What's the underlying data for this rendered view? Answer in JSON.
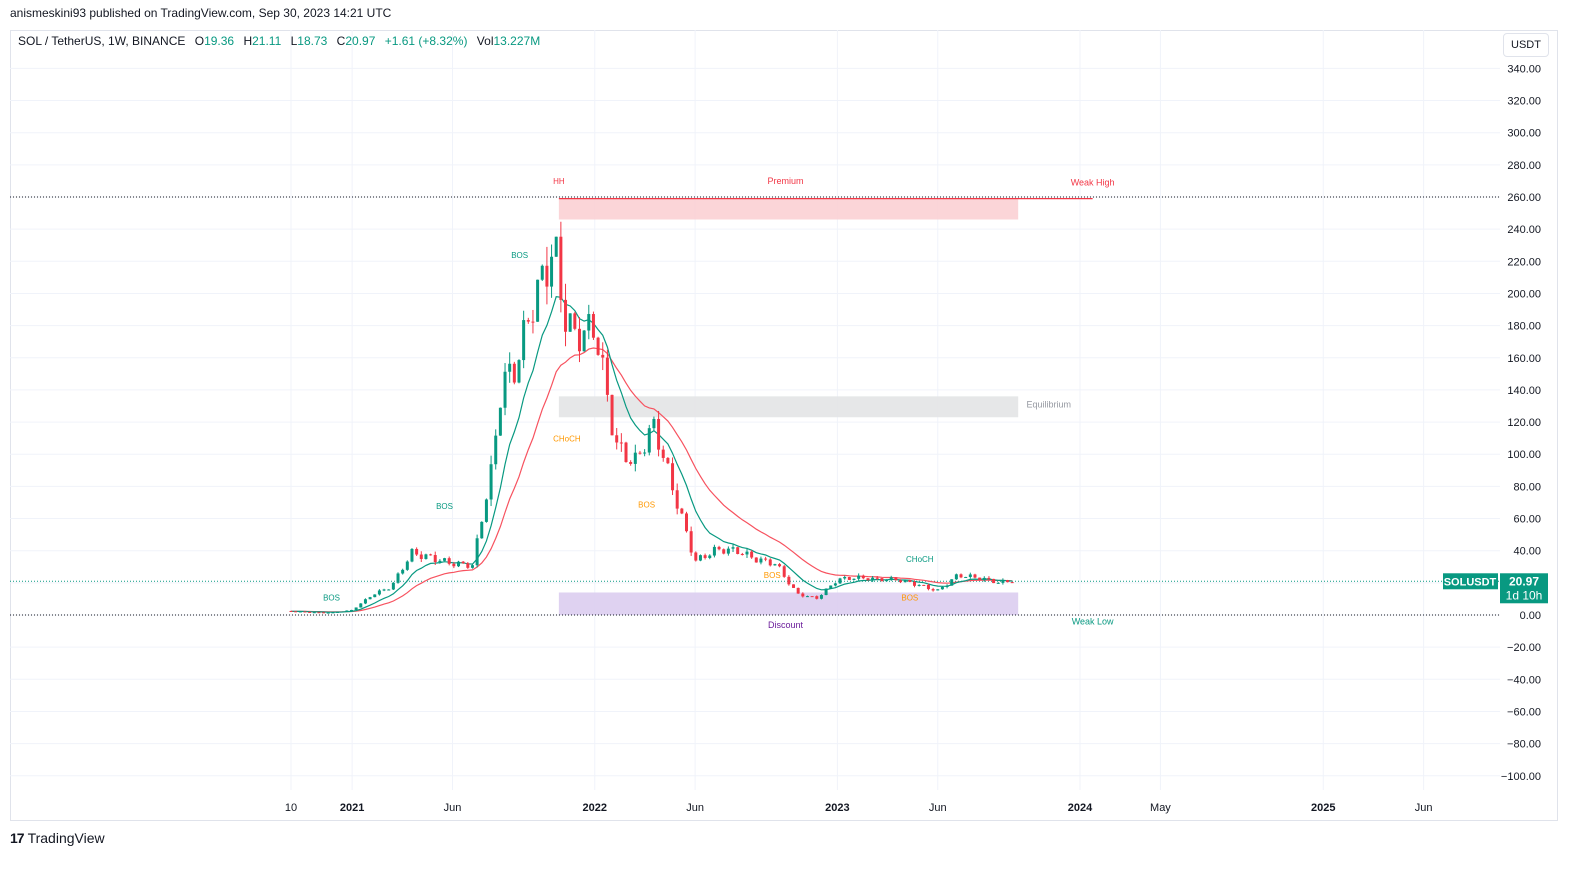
{
  "header": {
    "published": "anismeskini93 published on TradingView.com, Sep 30, 2023 14:21 UTC"
  },
  "legend": {
    "symbol": "SOL / TetherUS, 1W, BINANCE",
    "open_label": "O",
    "open": "19.36",
    "high_label": "H",
    "high": "21.11",
    "low_label": "L",
    "low": "18.73",
    "close_label": "C",
    "close": "20.97",
    "change": "+1.61 (+8.32%)",
    "vol_label": "Vol",
    "vol": "13.227M"
  },
  "unit_button": "USDT",
  "price_tag": {
    "symbol": "SOLUSDT",
    "price": "20.97",
    "countdown": "1d 10h"
  },
  "footer": {
    "brand": "TradingView"
  },
  "colors": {
    "up": "#089981",
    "down": "#f23645",
    "ema_fast": "#089981",
    "ema_slow": "#f7525f"
  },
  "chart_data": {
    "type": "candlestick",
    "ylim": [
      -100,
      340
    ],
    "y_ticks": [
      "340.00",
      "320.00",
      "300.00",
      "280.00",
      "260.00",
      "240.00",
      "220.00",
      "200.00",
      "180.00",
      "160.00",
      "140.00",
      "120.00",
      "100.00",
      "80.00",
      "60.00",
      "40.00",
      "20.00",
      "0.00",
      "−20.00",
      "−40.00",
      "−60.00",
      "−80.00",
      "−100.00"
    ],
    "x_ticks": [
      {
        "label": "10",
        "date": "2020-10-01",
        "bold": false
      },
      {
        "label": "2021",
        "date": "2021-01-01",
        "bold": true
      },
      {
        "label": "Jun",
        "date": "2021-06-01",
        "bold": false
      },
      {
        "label": "2022",
        "date": "2022-01-01",
        "bold": true
      },
      {
        "label": "Jun",
        "date": "2022-06-01",
        "bold": false
      },
      {
        "label": "2023",
        "date": "2023-01-01",
        "bold": true
      },
      {
        "label": "Jun",
        "date": "2023-06-01",
        "bold": false
      },
      {
        "label": "2024",
        "date": "2024-01-01",
        "bold": true
      },
      {
        "label": "May",
        "date": "2024-05-01",
        "bold": false
      },
      {
        "label": "2025",
        "date": "2025-01-01",
        "bold": true
      },
      {
        "label": "Jun",
        "date": "2025-06-01",
        "bold": false
      }
    ],
    "closes": [
      {
        "d": "2020-10-01",
        "c": 2.5
      },
      {
        "d": "2020-11-01",
        "c": 1.8
      },
      {
        "d": "2020-12-01",
        "c": 1.5
      },
      {
        "d": "2021-01-01",
        "c": 3
      },
      {
        "d": "2021-02-01",
        "c": 12
      },
      {
        "d": "2021-03-01",
        "c": 17
      },
      {
        "d": "2021-04-01",
        "c": 40
      },
      {
        "d": "2021-05-01",
        "c": 38
      },
      {
        "d": "2021-06-01",
        "c": 33
      },
      {
        "d": "2021-07-01",
        "c": 30
      },
      {
        "d": "2021-08-01",
        "c": 90
      },
      {
        "d": "2021-08-15",
        "c": 140
      },
      {
        "d": "2021-09-01",
        "c": 145
      },
      {
        "d": "2021-10-01",
        "c": 200
      },
      {
        "d": "2021-11-01",
        "c": 245
      },
      {
        "d": "2021-11-15",
        "c": 200
      },
      {
        "d": "2021-12-01",
        "c": 180
      },
      {
        "d": "2022-01-01",
        "c": 175
      },
      {
        "d": "2022-02-01",
        "c": 100
      },
      {
        "d": "2022-03-01",
        "c": 90
      },
      {
        "d": "2022-04-01",
        "c": 120
      },
      {
        "d": "2022-05-01",
        "c": 80
      },
      {
        "d": "2022-06-01",
        "c": 35
      },
      {
        "d": "2022-07-01",
        "c": 40
      },
      {
        "d": "2022-08-01",
        "c": 38
      },
      {
        "d": "2022-09-01",
        "c": 33
      },
      {
        "d": "2022-10-01",
        "c": 32
      },
      {
        "d": "2022-11-01",
        "c": 14
      },
      {
        "d": "2022-12-01",
        "c": 11
      },
      {
        "d": "2023-01-01",
        "c": 22
      },
      {
        "d": "2023-02-01",
        "c": 22
      },
      {
        "d": "2023-03-01",
        "c": 21
      },
      {
        "d": "2023-04-01",
        "c": 22
      },
      {
        "d": "2023-05-01",
        "c": 20
      },
      {
        "d": "2023-06-01",
        "c": 16
      },
      {
        "d": "2023-07-01",
        "c": 25
      },
      {
        "d": "2023-08-01",
        "c": 22
      },
      {
        "d": "2023-09-01",
        "c": 19
      },
      {
        "d": "2023-09-25",
        "c": 20.97
      }
    ],
    "zones": [
      {
        "name": "Premium",
        "from": "2021-11-08",
        "to": "2023-09-30",
        "y_low": 246,
        "y_high": 259,
        "color": "#fbd0d4"
      },
      {
        "name": "Equilibrium",
        "from": "2021-11-08",
        "to": "2023-09-30",
        "y_low": 123,
        "y_high": 136,
        "color": "#e3e4e6"
      },
      {
        "name": "Discount",
        "from": "2021-11-08",
        "to": "2023-09-30",
        "y_low": 0,
        "y_high": 14,
        "color": "#dccdf0"
      }
    ],
    "annotations": [
      {
        "text": "HH",
        "date": "2021-11-08",
        "y": 268,
        "color": "#f23645"
      },
      {
        "text": "Premium",
        "date": "2022-10-15",
        "y": 268,
        "color": "#f23645"
      },
      {
        "text": "Weak High",
        "date": "2024-01-20",
        "y": 267,
        "color": "#f23645"
      },
      {
        "text": "Equilibrium",
        "date": "2023-11-15",
        "y": 129,
        "color": "#9598a1"
      },
      {
        "text": "Discount",
        "date": "2022-10-15",
        "y": -8,
        "color": "#6a1b9a"
      },
      {
        "text": "Weak Low",
        "date": "2024-01-20",
        "y": -6,
        "color": "#089981"
      },
      {
        "text": "BOS",
        "date": "2020-12-01",
        "y": 9,
        "color": "#089981"
      },
      {
        "text": "BOS",
        "date": "2021-05-20",
        "y": 66,
        "color": "#089981"
      },
      {
        "text": "BOS",
        "date": "2021-09-10",
        "y": 222,
        "color": "#089981"
      },
      {
        "text": "CHoCH",
        "date": "2021-11-20",
        "y": 108,
        "color": "#ff9800"
      },
      {
        "text": "BOS",
        "date": "2022-03-20",
        "y": 67,
        "color": "#ff9800"
      },
      {
        "text": "BOS",
        "date": "2022-09-25",
        "y": 23,
        "color": "#ff9800"
      },
      {
        "text": "CHoCH",
        "date": "2023-05-05",
        "y": 33,
        "color": "#089981"
      },
      {
        "text": "BOS",
        "date": "2023-04-20",
        "y": 9,
        "color": "#ff9800"
      }
    ],
    "levels": [
      {
        "y": 260,
        "style": "dotted",
        "color": "#131722"
      },
      {
        "y": 0,
        "style": "dotted",
        "color": "#131722"
      },
      {
        "y": 20.97,
        "style": "dotted",
        "color": "#089981"
      }
    ]
  }
}
